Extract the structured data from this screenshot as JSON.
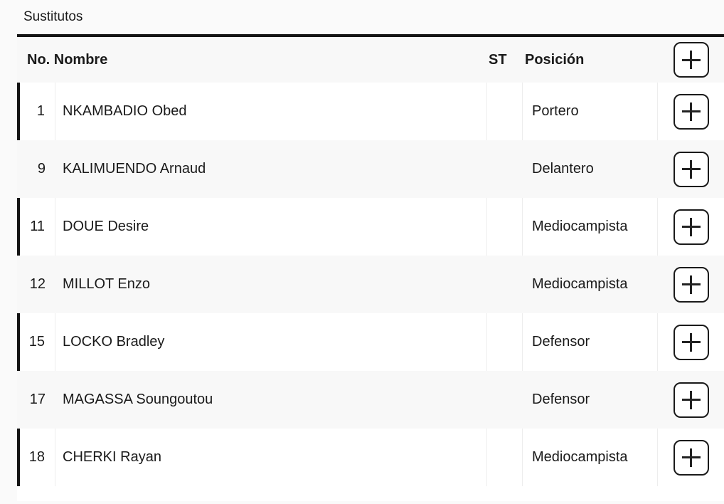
{
  "page": {
    "title": "Sustitutos",
    "background_color": "#fafafa",
    "accent_color": "#141414",
    "row_alt_color": "#f8f8f8"
  },
  "table": {
    "columns": {
      "number_name": "No. Nombre",
      "st": "ST",
      "position": "Posición"
    },
    "add_button": {
      "icon": "plus-icon"
    },
    "rows": [
      {
        "number": "1",
        "name": "NKAMBADIO Obed",
        "st": "",
        "position": "Portero",
        "accent": true
      },
      {
        "number": "9",
        "name": "KALIMUENDO Arnaud",
        "st": "",
        "position": "Delantero",
        "accent": false
      },
      {
        "number": "11",
        "name": "DOUE Desire",
        "st": "",
        "position": "Mediocampista",
        "accent": true
      },
      {
        "number": "12",
        "name": "MILLOT Enzo",
        "st": "",
        "position": "Mediocampista",
        "accent": false
      },
      {
        "number": "15",
        "name": "LOCKO Bradley",
        "st": "",
        "position": "Defensor",
        "accent": true
      },
      {
        "number": "17",
        "name": "MAGASSA Soungoutou",
        "st": "",
        "position": "Defensor",
        "accent": false
      },
      {
        "number": "18",
        "name": "CHERKI Rayan",
        "st": "",
        "position": "Mediocampista",
        "accent": true
      }
    ]
  }
}
